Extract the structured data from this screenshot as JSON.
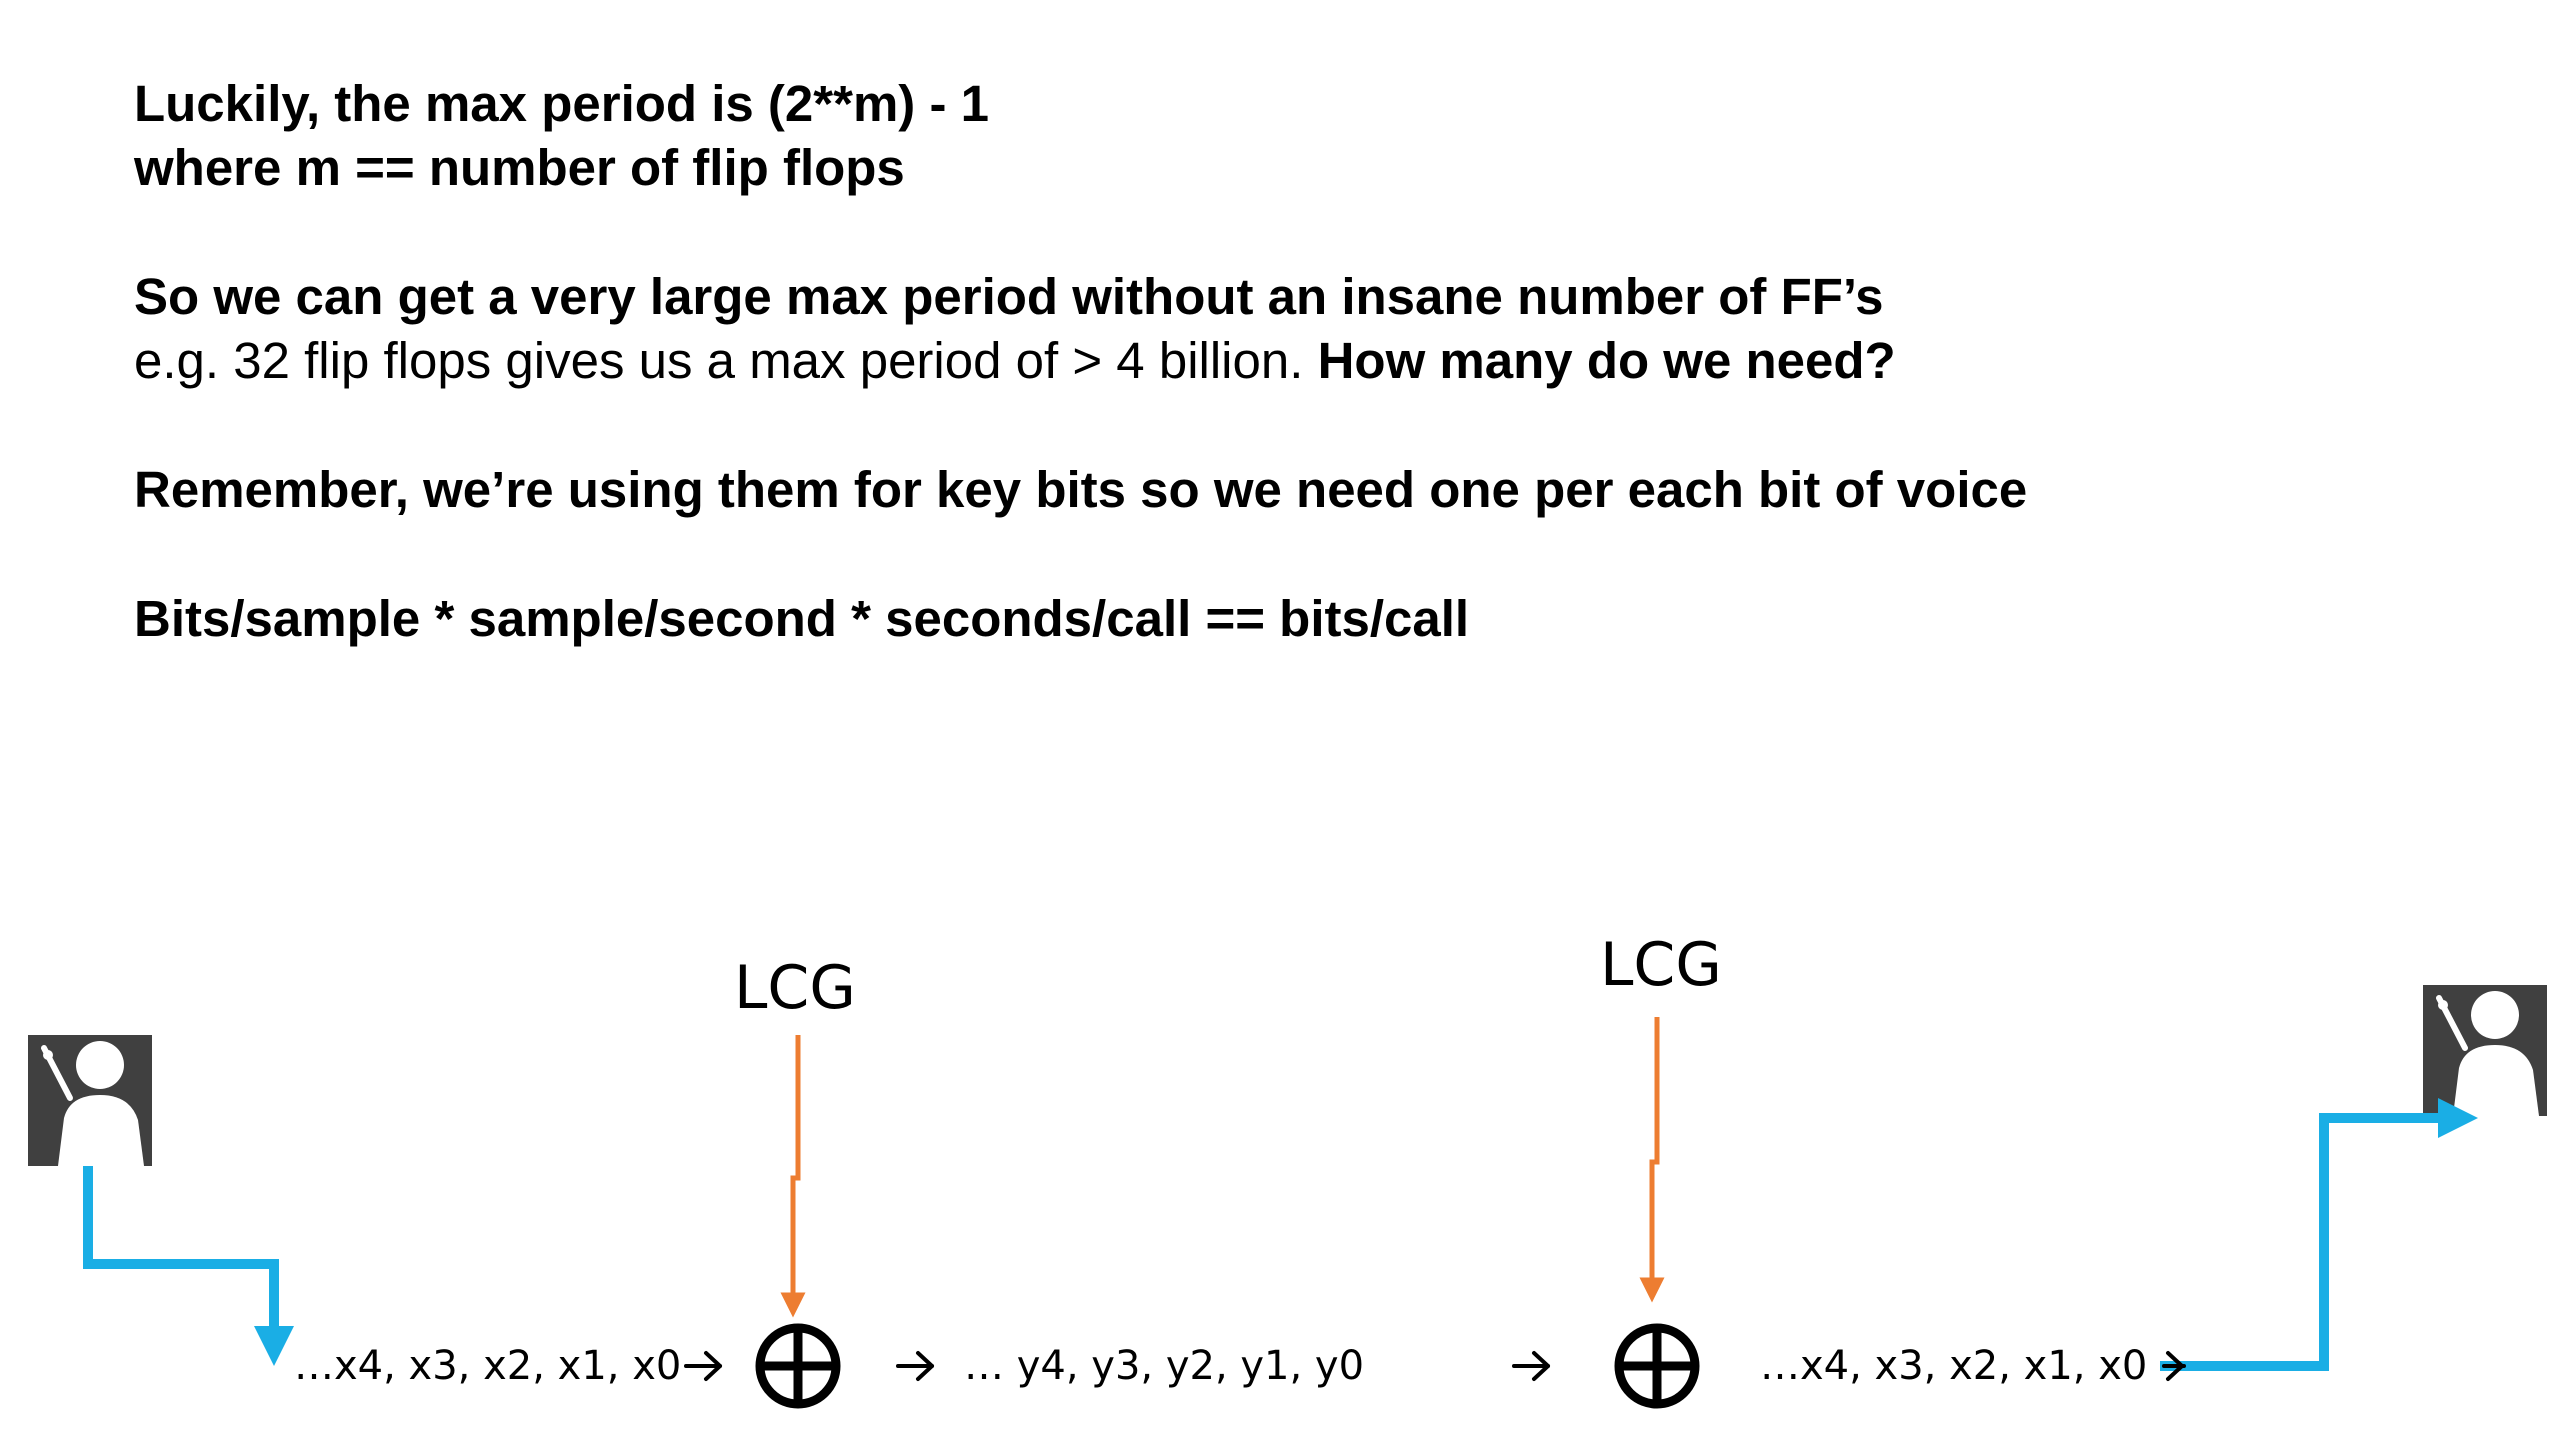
{
  "text": {
    "line1": "Luckily, the max period is (2**m) - 1",
    "line2": "where m == number of  flip flops",
    "line3": "So we can get a very large max period without an insane number of  FF’s",
    "line4a": "e.g.  32 flip flops gives us a max period of > 4 billion.  ",
    "line4b": "How many do we need?",
    "line5": "Remember, we’re using them for key bits so we need one per each bit of  voice",
    "line6": "Bits/sample *  sample/second * seconds/call    ==   bits/call"
  },
  "diagram": {
    "lcg_left_label": "LCG",
    "lcg_right_label": "LCG",
    "input_sequence": "…x4, x3, x2, x1, x0",
    "cipher_sequence": "… y4,  y3,  y2,  y1,  y0",
    "output_sequence": "…x4, x3, x2, x1, x0",
    "xor_symbol": "xor-circle",
    "sender_icon": "presenter-icon",
    "receiver_icon": "presenter-icon",
    "colors": {
      "signal_path": "#1aaee5",
      "keystream": "#ed7d31",
      "icon_box": "#404040"
    }
  }
}
